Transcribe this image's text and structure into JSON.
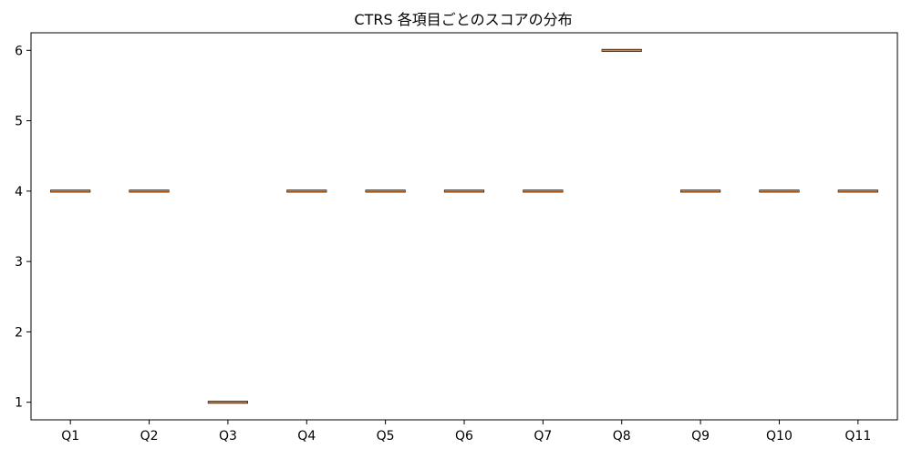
{
  "chart_data": {
    "type": "box",
    "title": "CTRS 各項目ごとのスコアの分布",
    "xlabel": "",
    "ylabel": "",
    "categories": [
      "Q1",
      "Q2",
      "Q3",
      "Q4",
      "Q5",
      "Q6",
      "Q7",
      "Q8",
      "Q9",
      "Q10",
      "Q11"
    ],
    "values": [
      4,
      4,
      1,
      4,
      4,
      4,
      4,
      6,
      4,
      4,
      4
    ],
    "ylim": [
      0.75,
      6.25
    ],
    "yticks": [
      "1",
      "2",
      "3",
      "4",
      "5",
      "6"
    ],
    "grid": false,
    "colors": {
      "median": "#ff7f0e",
      "box": "#000000",
      "axis": "#000000"
    }
  }
}
